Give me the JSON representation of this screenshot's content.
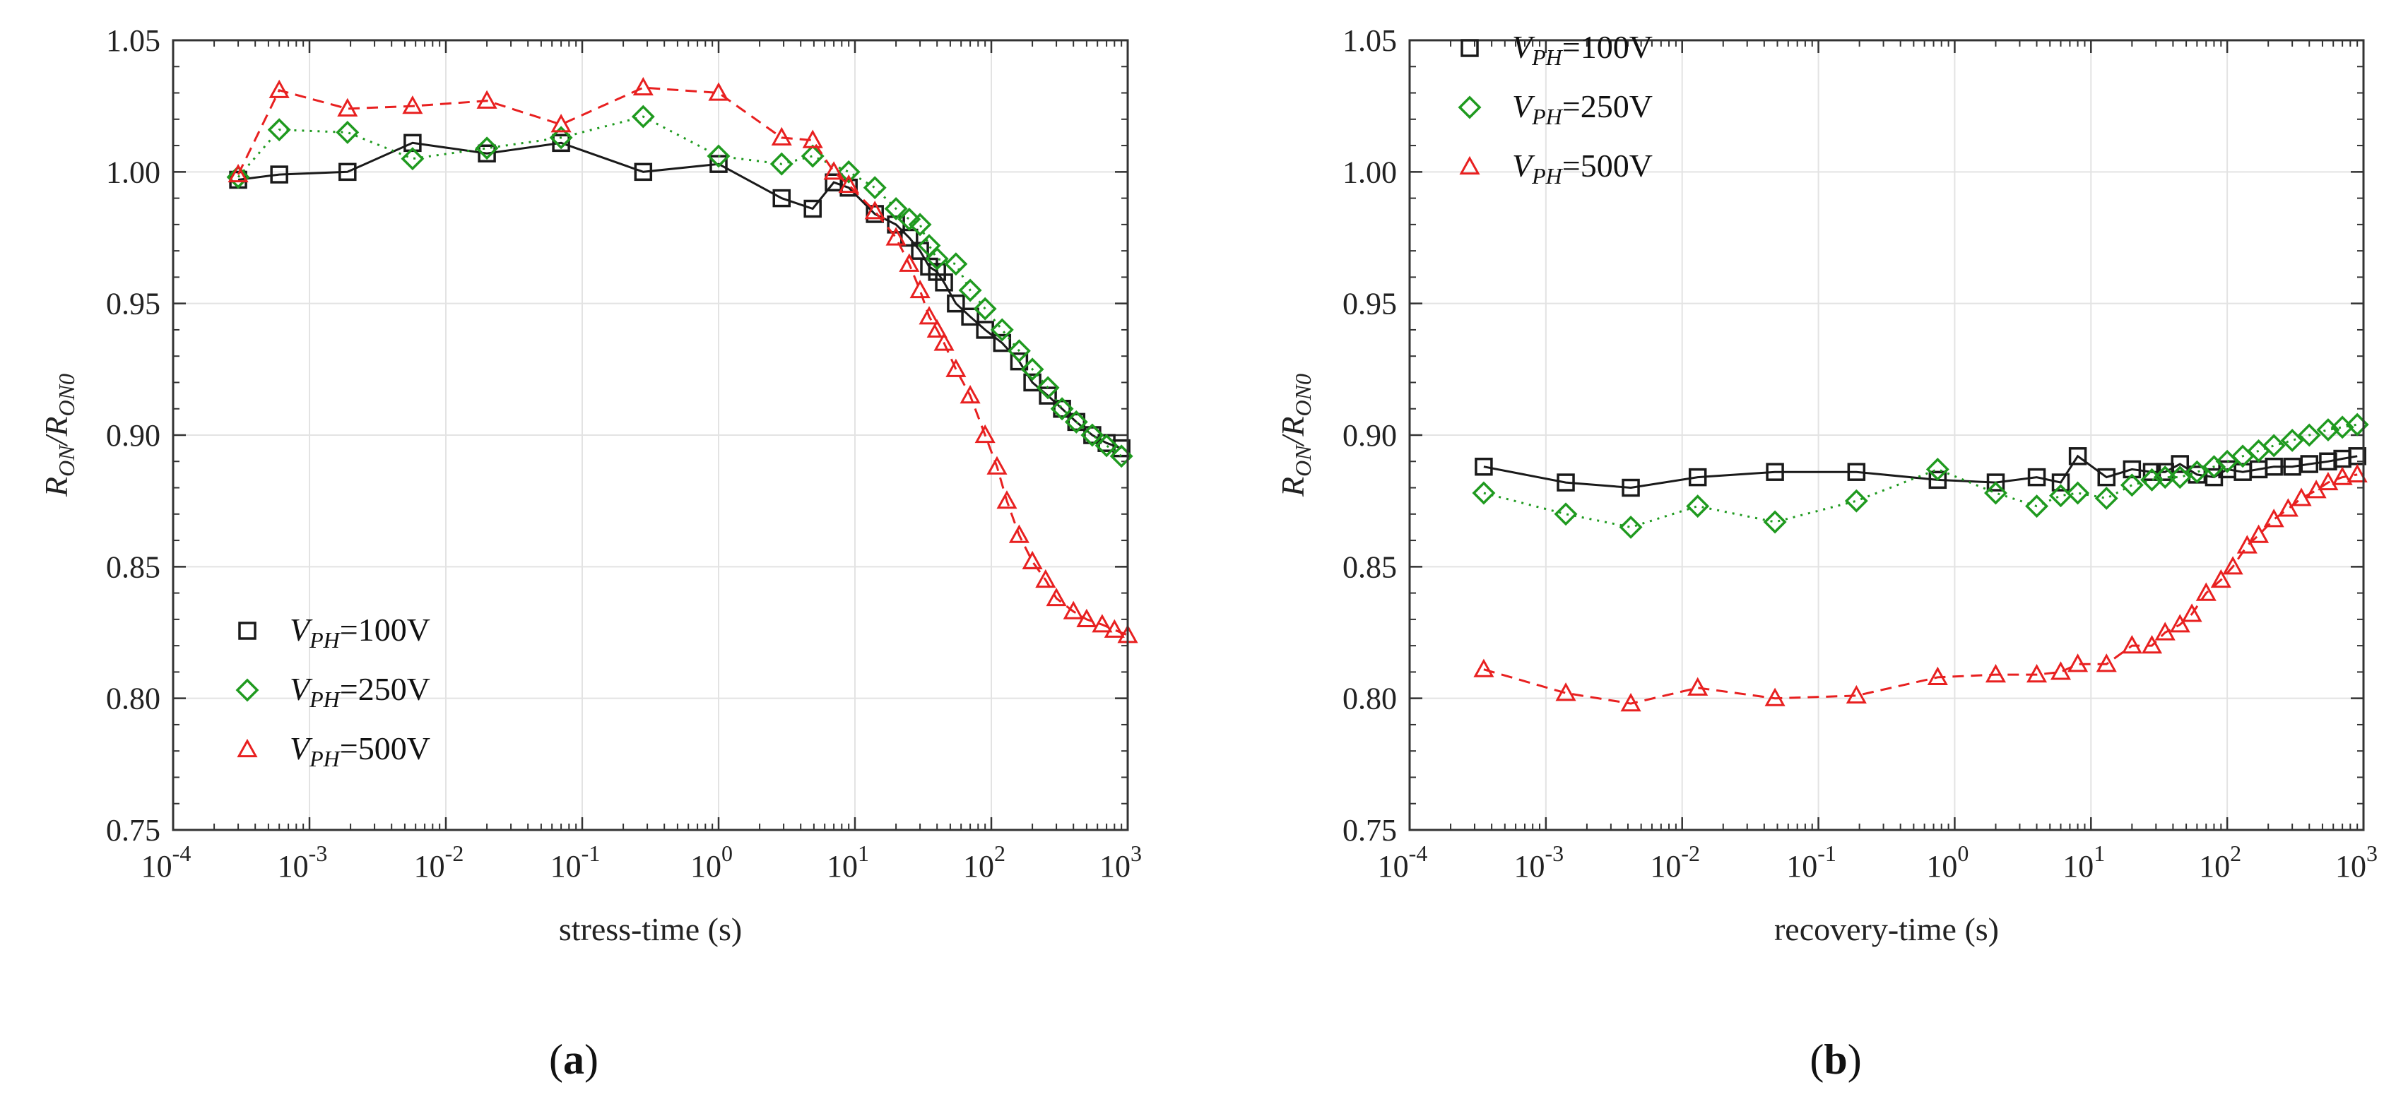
{
  "chart_data": [
    {
      "type": "line",
      "panel_label": "a",
      "xlabel": "stress-time (s)",
      "ylabel_parts": [
        "R",
        "ON",
        "/R",
        "ON0"
      ],
      "xscale": "log",
      "xlim": [
        0.0001,
        1000
      ],
      "ylim": [
        0.75,
        1.05
      ],
      "xticks": [
        "10",
        "10",
        "10",
        "10",
        "10",
        "10",
        "10",
        "10"
      ],
      "xtick_exponents": [
        "-4",
        "-3",
        "-2",
        "-1",
        "0",
        "1",
        "2",
        "3"
      ],
      "yticks": [
        "0.75",
        "0.80",
        "0.85",
        "0.90",
        "0.95",
        "1.00",
        "1.05"
      ],
      "grid": true,
      "legend_position": "bottom-left",
      "series": [
        {
          "name_prefix": "V",
          "name_sub": "PH",
          "name_suffix": "=100V",
          "marker": "square",
          "color": "#1a1a1a",
          "dash": "solid",
          "x": [
            0.0003,
            0.0006,
            0.0019,
            0.0057,
            0.02,
            0.07,
            0.28,
            1.0,
            2.9,
            4.9,
            7.0,
            9.0,
            14,
            20,
            25,
            30,
            35,
            40,
            45,
            55,
            70,
            90,
            120,
            160,
            200,
            260,
            330,
            420,
            550,
            700,
            900
          ],
          "y": [
            0.997,
            0.999,
            1.0,
            1.011,
            1.007,
            1.011,
            1.0,
            1.003,
            0.99,
            0.986,
            0.996,
            0.994,
            0.984,
            0.98,
            0.975,
            0.97,
            0.964,
            0.962,
            0.958,
            0.95,
            0.945,
            0.94,
            0.935,
            0.928,
            0.92,
            0.915,
            0.91,
            0.905,
            0.9,
            0.897,
            0.895
          ]
        },
        {
          "name_prefix": "V",
          "name_sub": "PH",
          "name_suffix": "=250V",
          "marker": "diamond",
          "color": "#1f9a1f",
          "dash": "dotted",
          "x": [
            0.0003,
            0.0006,
            0.0019,
            0.0057,
            0.02,
            0.07,
            0.28,
            1.0,
            2.9,
            4.9,
            9.0,
            14,
            20,
            25,
            30,
            35,
            40,
            55,
            70,
            90,
            120,
            160,
            200,
            260,
            330,
            420,
            550,
            700,
            900
          ],
          "y": [
            0.998,
            1.016,
            1.015,
            1.005,
            1.009,
            1.013,
            1.021,
            1.006,
            1.003,
            1.006,
            1.0,
            0.994,
            0.986,
            0.982,
            0.98,
            0.972,
            0.967,
            0.965,
            0.955,
            0.948,
            0.94,
            0.932,
            0.925,
            0.918,
            0.91,
            0.905,
            0.9,
            0.896,
            0.892
          ]
        },
        {
          "name_prefix": "V",
          "name_sub": "PH",
          "name_suffix": "=500V",
          "marker": "triangle",
          "color": "#e82020",
          "dash": "dashed",
          "x": [
            0.0003,
            0.0006,
            0.0019,
            0.0057,
            0.02,
            0.07,
            0.28,
            1.0,
            2.9,
            4.9,
            7.0,
            9.0,
            14,
            20,
            25,
            30,
            35,
            40,
            45,
            55,
            70,
            90,
            110,
            130,
            160,
            200,
            250,
            300,
            400,
            500,
            650,
            800,
            1000
          ],
          "y": [
            0.999,
            1.031,
            1.024,
            1.025,
            1.027,
            1.018,
            1.032,
            1.03,
            1.013,
            1.012,
            1.0,
            0.995,
            0.985,
            0.975,
            0.965,
            0.955,
            0.945,
            0.94,
            0.935,
            0.925,
            0.915,
            0.9,
            0.888,
            0.875,
            0.862,
            0.852,
            0.845,
            0.838,
            0.833,
            0.83,
            0.828,
            0.826,
            0.824
          ]
        }
      ]
    },
    {
      "type": "line",
      "panel_label": "b",
      "xlabel": "recovery-time (s)",
      "ylabel_parts": [
        "R",
        "ON",
        "/R",
        "ON0"
      ],
      "xscale": "log",
      "xlim": [
        0.0001,
        1000
      ],
      "ylim": [
        0.75,
        1.05
      ],
      "xticks": [
        "10",
        "10",
        "10",
        "10",
        "10",
        "10",
        "10",
        "10"
      ],
      "xtick_exponents": [
        "-4",
        "-3",
        "-2",
        "-1",
        "0",
        "1",
        "2",
        "3"
      ],
      "yticks": [
        "0.75",
        "0.80",
        "0.85",
        "0.90",
        "0.95",
        "1.00",
        "1.05"
      ],
      "grid": true,
      "legend_position": "top-left",
      "series": [
        {
          "name_prefix": "V",
          "name_sub": "PH",
          "name_suffix": "=100V",
          "marker": "square",
          "color": "#1a1a1a",
          "dash": "solid",
          "x": [
            0.00035,
            0.0014,
            0.0042,
            0.013,
            0.048,
            0.19,
            0.75,
            2.0,
            4.0,
            6.0,
            8.0,
            13,
            20,
            28,
            35,
            45,
            60,
            80,
            100,
            130,
            170,
            220,
            300,
            400,
            550,
            700,
            900
          ],
          "y": [
            0.888,
            0.882,
            0.88,
            0.884,
            0.886,
            0.886,
            0.883,
            0.882,
            0.884,
            0.882,
            0.892,
            0.884,
            0.887,
            0.886,
            0.886,
            0.889,
            0.885,
            0.884,
            0.887,
            0.886,
            0.887,
            0.888,
            0.888,
            0.889,
            0.89,
            0.891,
            0.892
          ]
        },
        {
          "name_prefix": "V",
          "name_sub": "PH",
          "name_suffix": "=250V",
          "marker": "diamond",
          "color": "#1f9a1f",
          "dash": "dotted",
          "x": [
            0.00035,
            0.0014,
            0.0042,
            0.013,
            0.048,
            0.19,
            0.75,
            2.0,
            4.0,
            6.0,
            8.0,
            13,
            20,
            28,
            35,
            45,
            60,
            80,
            100,
            130,
            170,
            220,
            300,
            400,
            550,
            700,
            900
          ],
          "y": [
            0.878,
            0.87,
            0.865,
            0.873,
            0.867,
            0.875,
            0.887,
            0.878,
            0.873,
            0.877,
            0.878,
            0.876,
            0.881,
            0.883,
            0.884,
            0.884,
            0.886,
            0.888,
            0.89,
            0.892,
            0.894,
            0.896,
            0.898,
            0.9,
            0.902,
            0.903,
            0.904
          ]
        },
        {
          "name_prefix": "V",
          "name_sub": "PH",
          "name_suffix": "=500V",
          "marker": "triangle",
          "color": "#e82020",
          "dash": "dashed",
          "x": [
            0.00035,
            0.0014,
            0.0042,
            0.013,
            0.048,
            0.19,
            0.75,
            2.0,
            4.0,
            6.0,
            8.0,
            13,
            20,
            28,
            35,
            45,
            55,
            70,
            90,
            110,
            140,
            170,
            220,
            280,
            350,
            450,
            550,
            700,
            900
          ],
          "y": [
            0.811,
            0.802,
            0.798,
            0.804,
            0.8,
            0.801,
            0.808,
            0.809,
            0.809,
            0.81,
            0.813,
            0.813,
            0.82,
            0.82,
            0.825,
            0.828,
            0.832,
            0.84,
            0.845,
            0.85,
            0.858,
            0.862,
            0.868,
            0.872,
            0.876,
            0.879,
            0.882,
            0.884,
            0.885
          ]
        }
      ]
    }
  ]
}
